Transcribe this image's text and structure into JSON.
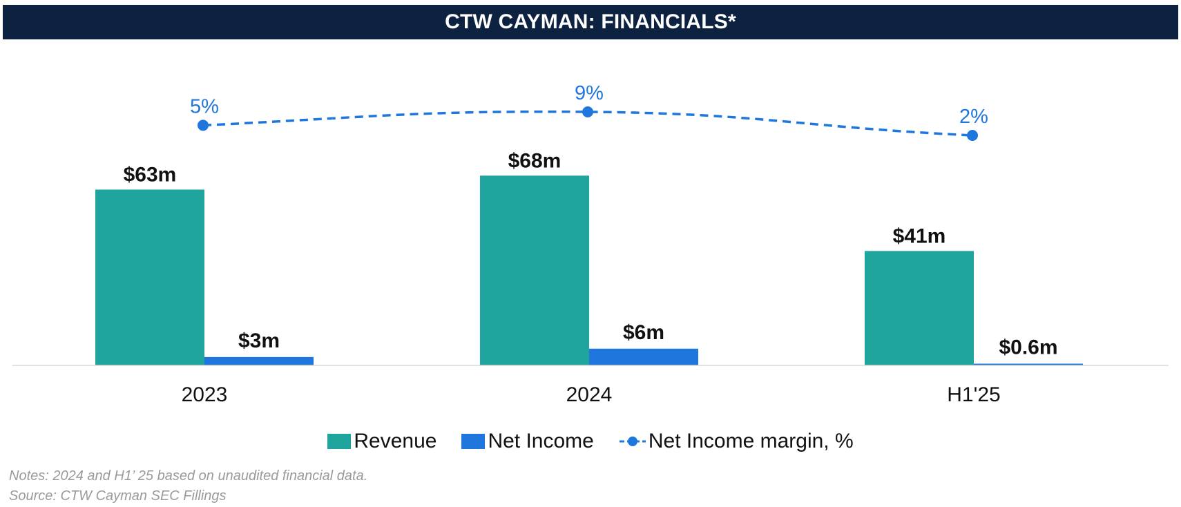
{
  "header": {
    "title": "CTW CAYMAN: FINANCIALS*"
  },
  "colors": {
    "header_bg": "#0d2240",
    "revenue": "#1fa59e",
    "net_income": "#1f77dd",
    "margin": "#1f77dd"
  },
  "chart_data": {
    "type": "bar",
    "categories": [
      "2023",
      "2024",
      "H1'25"
    ],
    "series": [
      {
        "name": "Revenue",
        "type": "bar",
        "values": [
          63,
          68,
          41
        ],
        "labels": [
          "$63m",
          "$68m",
          "$41m"
        ]
      },
      {
        "name": "Net Income",
        "type": "bar",
        "values": [
          3,
          6,
          0.6
        ],
        "labels": [
          "$3m",
          "$6m",
          "$0.6m"
        ]
      },
      {
        "name": "Net Income margin, %",
        "type": "line",
        "style": "dashed",
        "values": [
          5,
          9,
          2
        ],
        "labels": [
          "5%",
          "9%",
          "2%"
        ]
      }
    ],
    "legend_position": "bottom",
    "grid": false
  },
  "legend": {
    "revenue": "Revenue",
    "net_income": "Net Income",
    "margin": "Net Income margin, %"
  },
  "footer": {
    "notes": "Notes: 2024 and H1’ 25 based on unaudited financial data.",
    "source": "Source: CTW Cayman SEC Fillings"
  }
}
